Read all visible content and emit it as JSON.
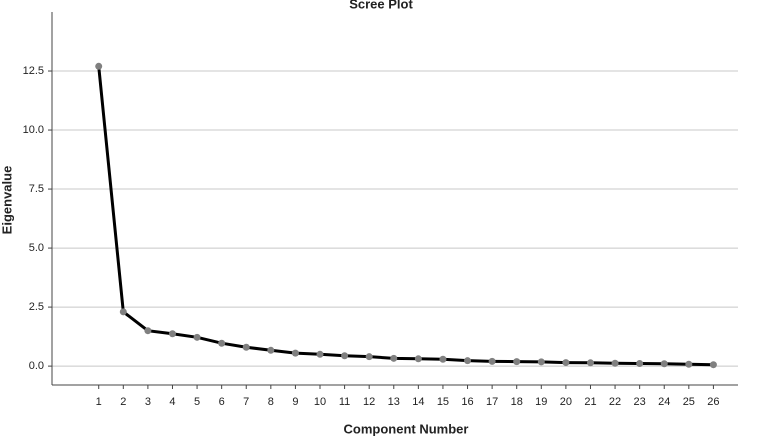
{
  "chart_data": {
    "type": "line",
    "title": "Scree Plot",
    "x_label": "Component Number",
    "y_label": "Eigenvalue",
    "x": [
      1,
      2,
      3,
      4,
      5,
      6,
      7,
      8,
      9,
      10,
      11,
      12,
      13,
      14,
      15,
      16,
      17,
      18,
      19,
      20,
      21,
      22,
      23,
      24,
      25,
      26
    ],
    "series": [
      {
        "name": "Eigenvalue",
        "color": "#000000",
        "marker_color": "#808080",
        "values": [
          12.7,
          2.3,
          1.5,
          1.37,
          1.22,
          0.97,
          0.8,
          0.67,
          0.55,
          0.5,
          0.44,
          0.4,
          0.33,
          0.31,
          0.29,
          0.23,
          0.2,
          0.19,
          0.18,
          0.15,
          0.14,
          0.12,
          0.11,
          0.1,
          0.08,
          0.06
        ]
      }
    ],
    "xlim": [
      -0.9,
      27
    ],
    "xticks": [
      1,
      2,
      3,
      4,
      5,
      6,
      7,
      8,
      9,
      10,
      11,
      12,
      13,
      14,
      15,
      16,
      17,
      18,
      19,
      20,
      21,
      22,
      23,
      24,
      25,
      26
    ],
    "ylim": [
      -0.8,
      15
    ],
    "yticks": [
      {
        "value": 0,
        "label": "0.0"
      },
      2.5,
      {
        "value": 5,
        "label": "5.0"
      },
      7.5,
      {
        "value": 10,
        "label": "10.0"
      },
      12.5
    ],
    "grid": true
  }
}
